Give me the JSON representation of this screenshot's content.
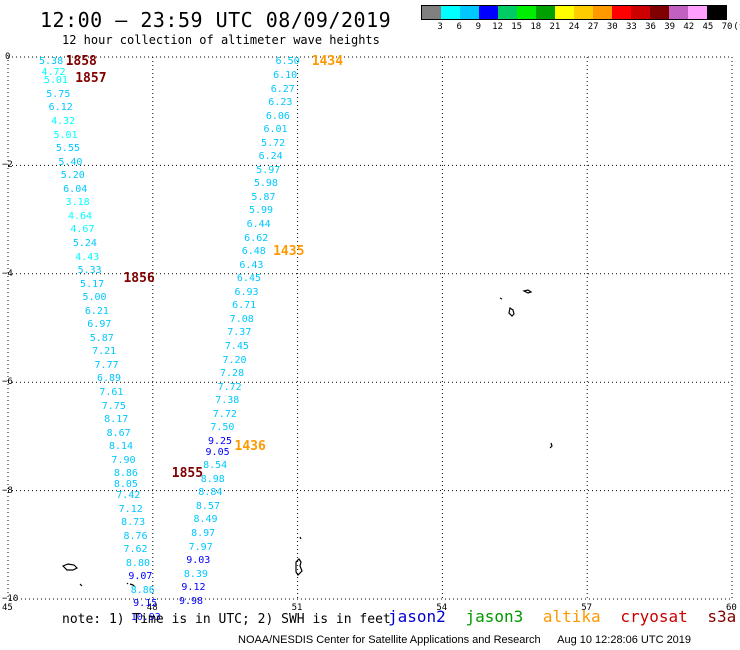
{
  "header": {
    "title": "12:00 – 23:59 UTC 08/09/2019",
    "subtitle": "12 hour collection of altimeter wave heights"
  },
  "legend": {
    "colors": [
      "#808080",
      "#00ffff",
      "#00c8ff",
      "#0000ff",
      "#00cc66",
      "#00ee00",
      "#00a000",
      "#ffff00",
      "#ffcc00",
      "#ff9900",
      "#ff0000",
      "#cc0000",
      "#800000",
      "#c060c0",
      "#ffa0ff",
      "#000000"
    ],
    "labels": [
      "3",
      "6",
      "9",
      "12",
      "15",
      "18",
      "21",
      "24",
      "27",
      "30",
      "33",
      "36",
      "39",
      "42",
      "45",
      "70",
      "(ft)"
    ]
  },
  "axes": {
    "x_ticks": [
      "45",
      "48",
      "51",
      "54",
      "57",
      "60"
    ],
    "y_ticks": [
      "0",
      "−2",
      "−4",
      "−6",
      "−8",
      "−10"
    ]
  },
  "satellites": {
    "jason2": {
      "label": "jason2",
      "color": "#0000d0"
    },
    "jason3": {
      "label": "jason3",
      "color": "#009900"
    },
    "altika": {
      "label": "altika",
      "color": "#ff9900"
    },
    "cryosat": {
      "label": "cryosat",
      "color": "#cc0000"
    },
    "s3a": {
      "label": "s3a",
      "color": "#800000"
    }
  },
  "map_data": {
    "lon_range": [
      45,
      60
    ],
    "lat_range": [
      -10,
      0
    ],
    "tracks": [
      {
        "satellite": "s3a",
        "times": [
          {
            "label": "1858",
            "lat": -0.1,
            "lon": 46.4
          },
          {
            "label": "1857",
            "lat": -0.4,
            "lon": 46.6
          },
          {
            "label": "1856",
            "lat": -4.1,
            "lon": 47.6
          },
          {
            "label": "1855",
            "lat": -7.7,
            "lon": 48.6
          }
        ],
        "points": [
          {
            "lat": -0.1,
            "lon": 45.85,
            "v": "5.38",
            "c": "#00c8ff"
          },
          {
            "lat": -0.3,
            "lon": 45.9,
            "v": "4.72",
            "c": "#00ffff"
          },
          {
            "lat": -0.45,
            "lon": 45.95,
            "v": "5.01",
            "c": "#00ffff"
          },
          {
            "lat": -0.7,
            "lon": 46.0,
            "v": "5.75",
            "c": "#00c8ff"
          },
          {
            "lat": -0.95,
            "lon": 46.05,
            "v": "6.12",
            "c": "#00c8ff"
          },
          {
            "lat": -1.2,
            "lon": 46.1,
            "v": "4.32",
            "c": "#00ffff"
          },
          {
            "lat": -1.45,
            "lon": 46.15,
            "v": "5.01",
            "c": "#00ffff"
          },
          {
            "lat": -1.7,
            "lon": 46.2,
            "v": "5.55",
            "c": "#00c8ff"
          },
          {
            "lat": -1.95,
            "lon": 46.25,
            "v": "5.40",
            "c": "#00c8ff"
          },
          {
            "lat": -2.2,
            "lon": 46.3,
            "v": "5.20",
            "c": "#00c8ff"
          },
          {
            "lat": -2.45,
            "lon": 46.35,
            "v": "6.04",
            "c": "#00c8ff"
          },
          {
            "lat": -2.7,
            "lon": 46.4,
            "v": "3.18",
            "c": "#00ffff"
          },
          {
            "lat": -2.95,
            "lon": 46.45,
            "v": "4.64",
            "c": "#00ffff"
          },
          {
            "lat": -3.2,
            "lon": 46.5,
            "v": "4.67",
            "c": "#00ffff"
          },
          {
            "lat": -3.45,
            "lon": 46.55,
            "v": "5.24",
            "c": "#00c8ff"
          },
          {
            "lat": -3.7,
            "lon": 46.6,
            "v": "4.43",
            "c": "#00ffff"
          },
          {
            "lat": -3.95,
            "lon": 46.65,
            "v": "5.33",
            "c": "#00c8ff"
          },
          {
            "lat": -4.2,
            "lon": 46.7,
            "v": "5.17",
            "c": "#00c8ff"
          },
          {
            "lat": -4.45,
            "lon": 46.75,
            "v": "5.00",
            "c": "#00c8ff"
          },
          {
            "lat": -4.7,
            "lon": 46.8,
            "v": "6.21",
            "c": "#00c8ff"
          },
          {
            "lat": -4.95,
            "lon": 46.85,
            "v": "6.97",
            "c": "#00c8ff"
          },
          {
            "lat": -5.2,
            "lon": 46.9,
            "v": "5.87",
            "c": "#00c8ff"
          },
          {
            "lat": -5.45,
            "lon": 46.95,
            "v": "7.21",
            "c": "#00c8ff"
          },
          {
            "lat": -5.7,
            "lon": 47.0,
            "v": "7.77",
            "c": "#00c8ff"
          },
          {
            "lat": -5.95,
            "lon": 47.05,
            "v": "6.89",
            "c": "#00c8ff"
          },
          {
            "lat": -6.2,
            "lon": 47.1,
            "v": "7.61",
            "c": "#00c8ff"
          },
          {
            "lat": -6.45,
            "lon": 47.15,
            "v": "7.75",
            "c": "#00c8ff"
          },
          {
            "lat": -6.7,
            "lon": 47.2,
            "v": "8.17",
            "c": "#00c8ff"
          },
          {
            "lat": -6.95,
            "lon": 47.25,
            "v": "8.67",
            "c": "#00c8ff"
          },
          {
            "lat": -7.2,
            "lon": 47.3,
            "v": "8.14",
            "c": "#00c8ff"
          },
          {
            "lat": -7.45,
            "lon": 47.35,
            "v": "7.90",
            "c": "#00c8ff"
          },
          {
            "lat": -7.7,
            "lon": 47.4,
            "v": "8.86",
            "c": "#00c8ff"
          },
          {
            "lat": -7.9,
            "lon": 47.4,
            "v": "8.05",
            "c": "#00c8ff"
          },
          {
            "lat": -8.1,
            "lon": 47.45,
            "v": "7.42",
            "c": "#00c8ff"
          },
          {
            "lat": -8.35,
            "lon": 47.5,
            "v": "7.12",
            "c": "#00c8ff"
          },
          {
            "lat": -8.6,
            "lon": 47.55,
            "v": "8.73",
            "c": "#00c8ff"
          },
          {
            "lat": -8.85,
            "lon": 47.6,
            "v": "8.76",
            "c": "#00c8ff"
          },
          {
            "lat": -9.1,
            "lon": 47.6,
            "v": "7.62",
            "c": "#00c8ff"
          },
          {
            "lat": -9.35,
            "lon": 47.65,
            "v": "8.80",
            "c": "#00c8ff"
          },
          {
            "lat": -9.6,
            "lon": 47.7,
            "v": "9.07",
            "c": "#0000ff"
          },
          {
            "lat": -9.85,
            "lon": 47.75,
            "v": "8.86",
            "c": "#00c8ff"
          },
          {
            "lat": -10.1,
            "lon": 47.8,
            "v": "9.15",
            "c": "#0000ff"
          },
          {
            "lat": -10.35,
            "lon": 47.75,
            "v": "10.93",
            "c": "#0000ff"
          }
        ]
      },
      {
        "satellite": "altika",
        "times": [
          {
            "label": "1434",
            "lat": -0.1,
            "lon": 51.5
          },
          {
            "label": "1435",
            "lat": -3.6,
            "lon": 50.7
          },
          {
            "label": "1436",
            "lat": -7.2,
            "lon": 49.9
          }
        ],
        "points": [
          {
            "lat": -0.1,
            "lon": 50.75,
            "v": "6.50",
            "c": "#00c8ff"
          },
          {
            "lat": -0.35,
            "lon": 50.7,
            "v": "6.10",
            "c": "#00c8ff"
          },
          {
            "lat": -0.6,
            "lon": 50.65,
            "v": "6.27",
            "c": "#00c8ff"
          },
          {
            "lat": -0.85,
            "lon": 50.6,
            "v": "6.23",
            "c": "#00c8ff"
          },
          {
            "lat": -1.1,
            "lon": 50.55,
            "v": "6.06",
            "c": "#00c8ff"
          },
          {
            "lat": -1.35,
            "lon": 50.5,
            "v": "6.01",
            "c": "#00c8ff"
          },
          {
            "lat": -1.6,
            "lon": 50.45,
            "v": "5.72",
            "c": "#00c8ff"
          },
          {
            "lat": -1.85,
            "lon": 50.4,
            "v": "6.24",
            "c": "#00c8ff"
          },
          {
            "lat": -2.1,
            "lon": 50.35,
            "v": "5.97",
            "c": "#00c8ff"
          },
          {
            "lat": -2.35,
            "lon": 50.3,
            "v": "5.98",
            "c": "#00c8ff"
          },
          {
            "lat": -2.6,
            "lon": 50.25,
            "v": "5.87",
            "c": "#00c8ff"
          },
          {
            "lat": -2.85,
            "lon": 50.2,
            "v": "5.99",
            "c": "#00c8ff"
          },
          {
            "lat": -3.1,
            "lon": 50.15,
            "v": "6.44",
            "c": "#00c8ff"
          },
          {
            "lat": -3.35,
            "lon": 50.1,
            "v": "6.62",
            "c": "#00c8ff"
          },
          {
            "lat": -3.6,
            "lon": 50.05,
            "v": "6.48",
            "c": "#00c8ff"
          },
          {
            "lat": -3.85,
            "lon": 50.0,
            "v": "6.43",
            "c": "#00c8ff"
          },
          {
            "lat": -4.1,
            "lon": 49.95,
            "v": "6.45",
            "c": "#00c8ff"
          },
          {
            "lat": -4.35,
            "lon": 49.9,
            "v": "6.93",
            "c": "#00c8ff"
          },
          {
            "lat": -4.6,
            "lon": 49.85,
            "v": "6.71",
            "c": "#00c8ff"
          },
          {
            "lat": -4.85,
            "lon": 49.8,
            "v": "7.08",
            "c": "#00c8ff"
          },
          {
            "lat": -5.1,
            "lon": 49.75,
            "v": "7.37",
            "c": "#00c8ff"
          },
          {
            "lat": -5.35,
            "lon": 49.7,
            "v": "7.45",
            "c": "#00c8ff"
          },
          {
            "lat": -5.6,
            "lon": 49.65,
            "v": "7.20",
            "c": "#00c8ff"
          },
          {
            "lat": -5.85,
            "lon": 49.6,
            "v": "7.28",
            "c": "#00c8ff"
          },
          {
            "lat": -6.1,
            "lon": 49.55,
            "v": "7.72",
            "c": "#00c8ff"
          },
          {
            "lat": -6.35,
            "lon": 49.5,
            "v": "7.38",
            "c": "#00c8ff"
          },
          {
            "lat": -6.6,
            "lon": 49.45,
            "v": "7.72",
            "c": "#00c8ff"
          },
          {
            "lat": -6.85,
            "lon": 49.4,
            "v": "7.50",
            "c": "#00c8ff"
          },
          {
            "lat": -7.1,
            "lon": 49.35,
            "v": "9.25",
            "c": "#0000ff"
          },
          {
            "lat": -7.3,
            "lon": 49.3,
            "v": "9.05",
            "c": "#0000ff"
          },
          {
            "lat": -7.55,
            "lon": 49.25,
            "v": "8.54",
            "c": "#00c8ff"
          },
          {
            "lat": -7.8,
            "lon": 49.2,
            "v": "8.98",
            "c": "#00c8ff"
          },
          {
            "lat": -8.05,
            "lon": 49.15,
            "v": "8.84",
            "c": "#00c8ff"
          },
          {
            "lat": -8.3,
            "lon": 49.1,
            "v": "8.57",
            "c": "#00c8ff"
          },
          {
            "lat": -8.55,
            "lon": 49.05,
            "v": "8.49",
            "c": "#00c8ff"
          },
          {
            "lat": -8.8,
            "lon": 49.0,
            "v": "8.97",
            "c": "#00c8ff"
          },
          {
            "lat": -9.05,
            "lon": 48.95,
            "v": "7.97",
            "c": "#00c8ff"
          },
          {
            "lat": -9.3,
            "lon": 48.9,
            "v": "9.03",
            "c": "#0000ff"
          },
          {
            "lat": -9.55,
            "lon": 48.85,
            "v": "8.39",
            "c": "#00c8ff"
          },
          {
            "lat": -9.8,
            "lon": 48.8,
            "v": "9.12",
            "c": "#0000ff"
          },
          {
            "lat": -10.05,
            "lon": 48.75,
            "v": "9.98",
            "c": "#0000ff"
          }
        ]
      }
    ]
  },
  "note": "note:  1) Time is in UTC;  2) SWH is in feet",
  "footer": {
    "credit": "NOAA/NESDIS Center for Satellite Applications and Research",
    "timestamp": "Aug 10 12:28:06 UTC 2019"
  }
}
